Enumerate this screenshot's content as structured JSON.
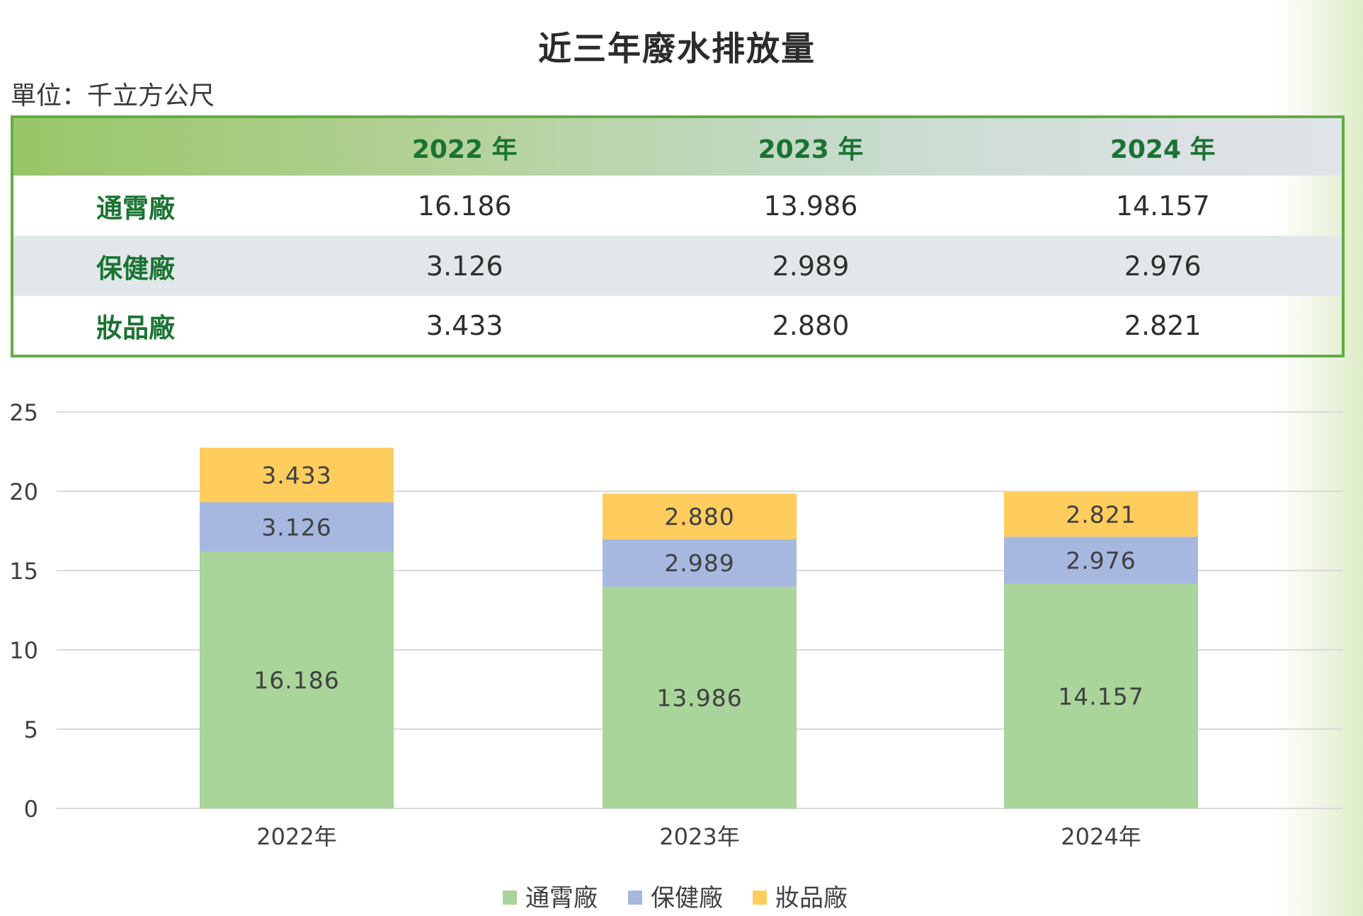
{
  "title": "近三年廢水排放量",
  "unit": "單位：千立方公尺",
  "table": {
    "headers": [
      "",
      "2022 年",
      "2023 年",
      "2024 年"
    ],
    "rows": [
      {
        "label": "通霄廠",
        "values": [
          "16.186",
          "13.986",
          "14.157"
        ]
      },
      {
        "label": "保健廠",
        "values": [
          "3.126",
          "2.989",
          "2.976"
        ]
      },
      {
        "label": "妝品廠",
        "values": [
          "3.433",
          "2.880",
          "2.821"
        ]
      }
    ]
  },
  "colors": {
    "title": "#2b2b2b",
    "table_border": "#62ad45",
    "table_label": "#1b7332",
    "通霄廠": "#a9d49a",
    "保健廠": "#a6b8e0",
    "妝品廠": "#fecd5d",
    "gridline": "#d9d9d9"
  },
  "chart_data": {
    "type": "bar",
    "stacked": true,
    "categories": [
      "2022年",
      "2023年",
      "2024年"
    ],
    "series": [
      {
        "name": "通霄廠",
        "values": [
          16.186,
          13.986,
          14.157
        ],
        "labels": [
          "16.186",
          "13.986",
          "14.157"
        ],
        "color": "#a9d49a"
      },
      {
        "name": "保健廠",
        "values": [
          3.126,
          2.989,
          2.976
        ],
        "labels": [
          "3.126",
          "2.989",
          "2.976"
        ],
        "color": "#a6b8e0"
      },
      {
        "name": "妝品廠",
        "values": [
          3.433,
          2.88,
          2.821
        ],
        "labels": [
          "3.433",
          "2.880",
          "2.821"
        ],
        "color": "#fecd5d"
      }
    ],
    "ylim": [
      0,
      25
    ],
    "yticks": [
      0,
      5,
      10,
      15,
      20,
      25
    ],
    "grid": true,
    "legend_position": "bottom"
  }
}
